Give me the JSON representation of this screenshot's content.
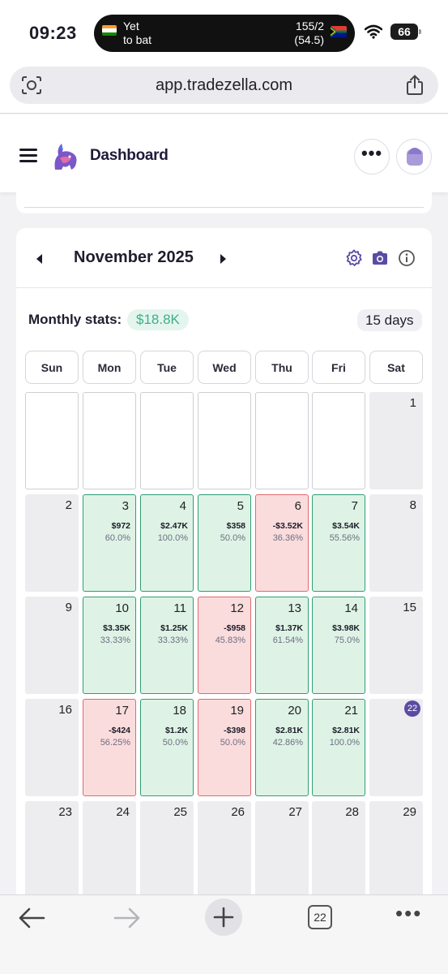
{
  "status_bar": {
    "time": "09:23",
    "live_text_line1": "Yet",
    "live_text_line2": "to bat",
    "score_line1": "155/2",
    "score_line2": "(54.5)",
    "battery": "66"
  },
  "browser": {
    "url": "app.tradezella.com",
    "tabs_count": "22"
  },
  "header": {
    "title": "Dashboard",
    "more_label": "•••"
  },
  "calendar": {
    "month_title": "November 2025",
    "stats_label": "Monthly stats:",
    "stats_value": "$18.8K",
    "days_badge": "15 days",
    "weekdays": [
      "Sun",
      "Mon",
      "Tue",
      "Wed",
      "Thu",
      "Fri",
      "Sat"
    ],
    "weeks": [
      [
        {
          "type": "blank"
        },
        {
          "type": "blank"
        },
        {
          "type": "blank"
        },
        {
          "type": "blank"
        },
        {
          "type": "blank"
        },
        {
          "type": "blank"
        },
        {
          "type": "gray",
          "day": "1"
        }
      ],
      [
        {
          "type": "gray",
          "day": "2"
        },
        {
          "type": "green",
          "day": "3",
          "pnl": "$972",
          "pct": "60.0%"
        },
        {
          "type": "green",
          "day": "4",
          "pnl": "$2.47K",
          "pct": "100.0%"
        },
        {
          "type": "green",
          "day": "5",
          "pnl": "$358",
          "pct": "50.0%"
        },
        {
          "type": "red",
          "day": "6",
          "pnl": "-$3.52K",
          "pct": "36.36%"
        },
        {
          "type": "green",
          "day": "7",
          "pnl": "$3.54K",
          "pct": "55.56%"
        },
        {
          "type": "gray",
          "day": "8"
        }
      ],
      [
        {
          "type": "gray",
          "day": "9"
        },
        {
          "type": "green",
          "day": "10",
          "pnl": "$3.35K",
          "pct": "33.33%"
        },
        {
          "type": "green",
          "day": "11",
          "pnl": "$1.25K",
          "pct": "33.33%"
        },
        {
          "type": "red",
          "day": "12",
          "pnl": "-$958",
          "pct": "45.83%"
        },
        {
          "type": "green",
          "day": "13",
          "pnl": "$1.37K",
          "pct": "61.54%"
        },
        {
          "type": "green",
          "day": "14",
          "pnl": "$3.98K",
          "pct": "75.0%"
        },
        {
          "type": "gray",
          "day": "15"
        }
      ],
      [
        {
          "type": "gray",
          "day": "16"
        },
        {
          "type": "red",
          "day": "17",
          "pnl": "-$424",
          "pct": "56.25%"
        },
        {
          "type": "green",
          "day": "18",
          "pnl": "$1.2K",
          "pct": "50.0%"
        },
        {
          "type": "red",
          "day": "19",
          "pnl": "-$398",
          "pct": "50.0%"
        },
        {
          "type": "green",
          "day": "20",
          "pnl": "$2.81K",
          "pct": "42.86%"
        },
        {
          "type": "green",
          "day": "21",
          "pnl": "$2.81K",
          "pct": "100.0%"
        },
        {
          "type": "gray",
          "day": "22",
          "today": true
        }
      ],
      [
        {
          "type": "gray",
          "day": "23"
        },
        {
          "type": "gray",
          "day": "24"
        },
        {
          "type": "gray",
          "day": "25"
        },
        {
          "type": "gray",
          "day": "26"
        },
        {
          "type": "gray",
          "day": "27"
        },
        {
          "type": "gray",
          "day": "28"
        },
        {
          "type": "gray",
          "day": "29"
        }
      ]
    ]
  },
  "colors": {
    "profit_bg": "#def3e6",
    "profit_border": "#2f9e72",
    "loss_bg": "#fadcdd",
    "loss_border": "#e06a6c",
    "accent": "#5b4ba3"
  }
}
